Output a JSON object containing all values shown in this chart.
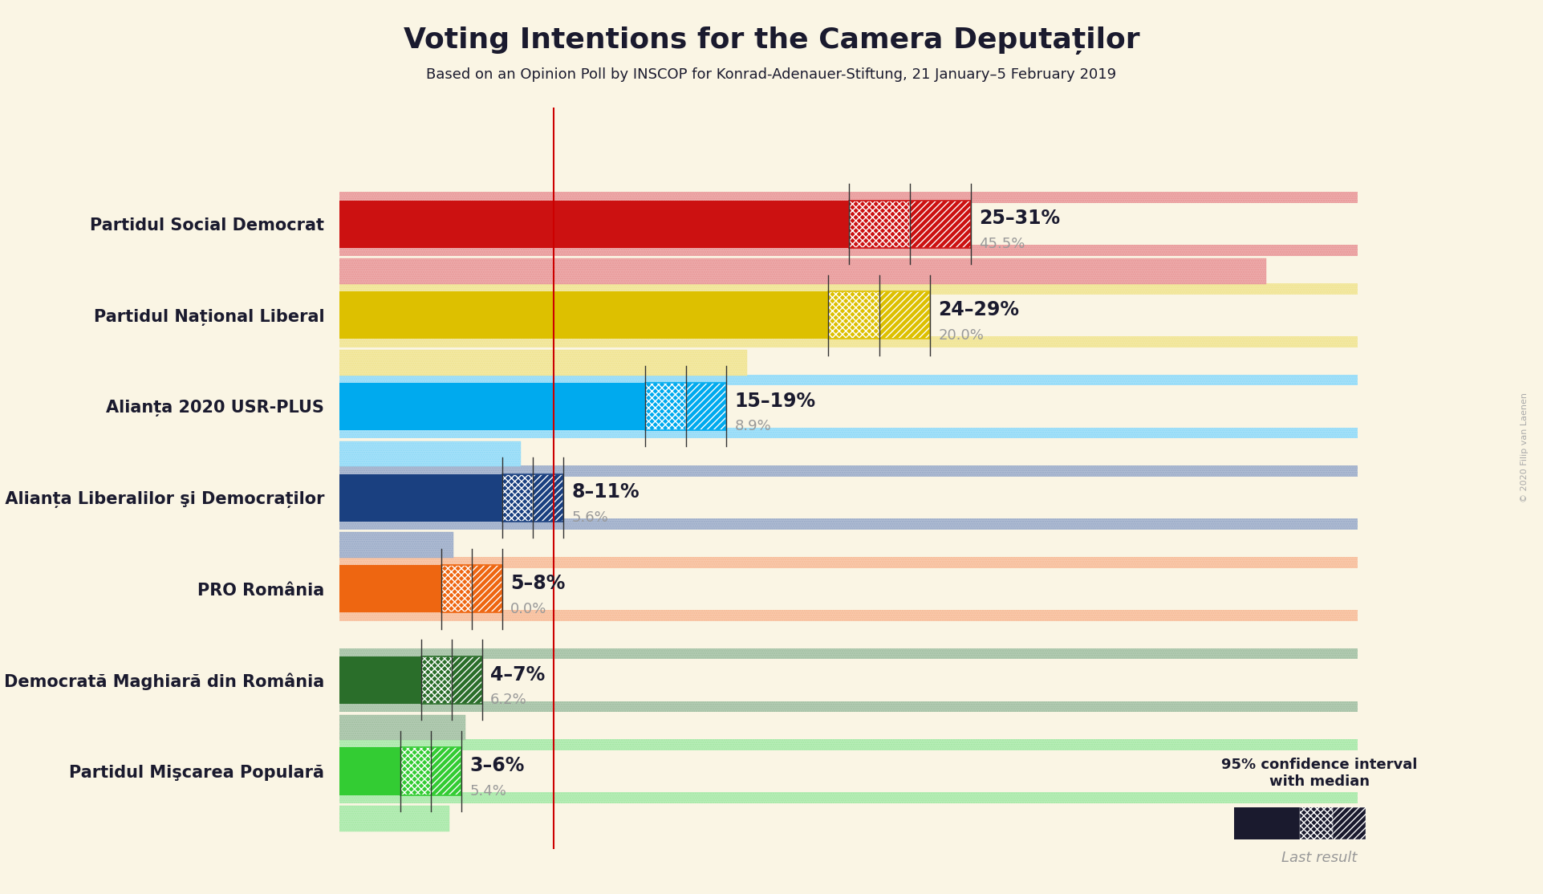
{
  "title": "Voting Intentions for the Camera Deputaților",
  "subtitle": "Based on an Opinion Poll by INSCOP for Konrad-Adenauer-Stiftung, 21 January–5 February 2019",
  "copyright": "© 2020 Filip van Laenen",
  "background_color": "#faf5e4",
  "parties": [
    {
      "name": "Partidul Social Democrat",
      "ci_low": 25,
      "ci_median": 28,
      "ci_high": 31,
      "last_result": 45.5,
      "color": "#cc1111",
      "label": "25–31%",
      "last_label": "45.5%"
    },
    {
      "name": "Partidul Național Liberal",
      "ci_low": 24,
      "ci_median": 26.5,
      "ci_high": 29,
      "last_result": 20.0,
      "color": "#ddc000",
      "label": "24–29%",
      "last_label": "20.0%"
    },
    {
      "name": "Alianța 2020 USR-PLUS",
      "ci_low": 15,
      "ci_median": 17,
      "ci_high": 19,
      "last_result": 8.9,
      "color": "#00aaee",
      "label": "15–19%",
      "last_label": "8.9%"
    },
    {
      "name": "Partidul Alianța Liberalilor şi Democraților",
      "ci_low": 8,
      "ci_median": 9.5,
      "ci_high": 11,
      "last_result": 5.6,
      "color": "#1a4080",
      "label": "8–11%",
      "last_label": "5.6%"
    },
    {
      "name": "PRO România",
      "ci_low": 5,
      "ci_median": 6.5,
      "ci_high": 8,
      "last_result": 0.0,
      "color": "#ee6611",
      "label": "5–8%",
      "last_label": "0.0%"
    },
    {
      "name": "Uniunea Democrată Maghiară din România",
      "ci_low": 4,
      "ci_median": 5.5,
      "ci_high": 7,
      "last_result": 6.2,
      "color": "#2a6e2a",
      "label": "4–7%",
      "last_label": "6.2%"
    },
    {
      "name": "Partidul Mişcarea Populară",
      "ci_low": 3,
      "ci_median": 4.5,
      "ci_high": 6,
      "last_result": 5.4,
      "color": "#33cc33",
      "label": "3–6%",
      "last_label": "5.4%"
    }
  ],
  "xlim": [
    0,
    50
  ],
  "red_line_x": 10.5,
  "bar_height": 0.52,
  "last_bar_height": 0.28,
  "bar_gap": 0.12,
  "label_fontsize": 17,
  "last_label_fontsize": 13,
  "name_fontsize": 15,
  "title_fontsize": 26,
  "subtitle_fontsize": 13
}
